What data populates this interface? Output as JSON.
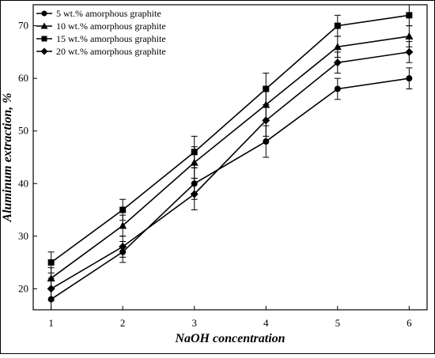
{
  "chart_data": {
    "type": "line",
    "title": "",
    "xlabel": "NaOH concentration",
    "ylabel": "Aluminum extraction, %",
    "x": [
      1,
      2,
      3,
      4,
      5,
      6
    ],
    "xlim": [
      0.75,
      6.25
    ],
    "ylim": [
      16,
      74
    ],
    "xticks": [
      "1",
      "2",
      "3",
      "4",
      "5",
      "6"
    ],
    "yticks": [
      "20",
      "30",
      "40",
      "50",
      "60",
      "70"
    ],
    "grid": false,
    "legend_position": "top-left",
    "series": [
      {
        "name": "5 wt.% amorphous graphite",
        "marker": "circle",
        "values": [
          18,
          27,
          40,
          48,
          58,
          60
        ],
        "errors": [
          2,
          2,
          3,
          3,
          2,
          2
        ]
      },
      {
        "name": "10 wt.% amorphous graphite",
        "marker": "triangle",
        "values": [
          22,
          32,
          44,
          55,
          66,
          68
        ],
        "errors": [
          2,
          2,
          3,
          3,
          2,
          2
        ]
      },
      {
        "name": "15 wt.% amorphous graphite",
        "marker": "square",
        "values": [
          25,
          35,
          46,
          58,
          70,
          72
        ],
        "errors": [
          2,
          2,
          3,
          3,
          2,
          2
        ]
      },
      {
        "name": "20 wt.% amorphous graphite",
        "marker": "diamond",
        "values": [
          20,
          28,
          38,
          52,
          63,
          65
        ],
        "errors": [
          2,
          2,
          3,
          3,
          2,
          2
        ]
      }
    ],
    "colors": {
      "line": "#000000",
      "marker": "#000000",
      "background": "#ffffff"
    }
  }
}
